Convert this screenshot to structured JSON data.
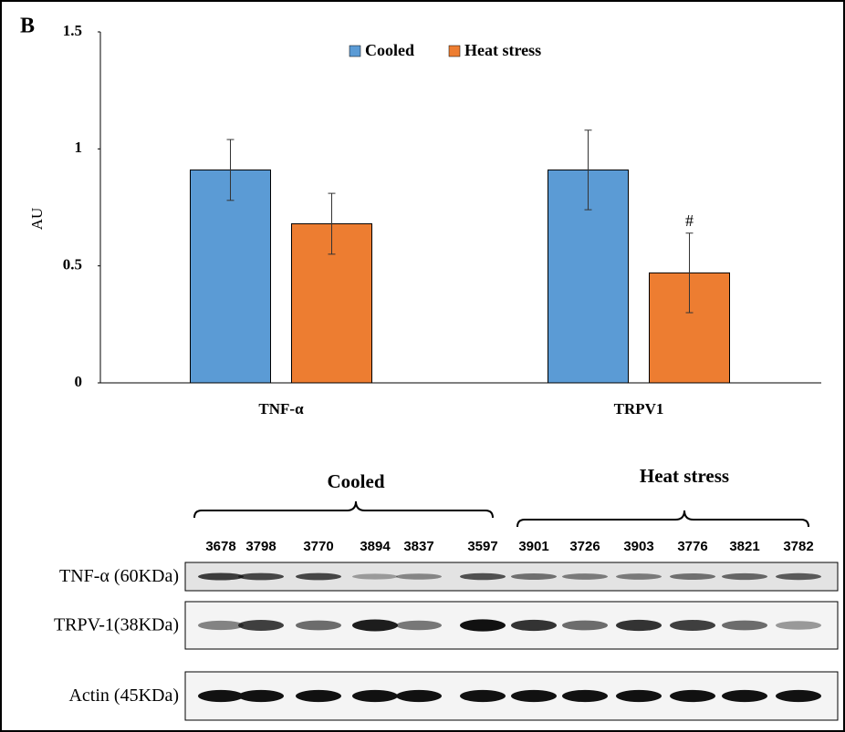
{
  "chart_data": {
    "type": "bar",
    "panel_label": "B",
    "y_label": "AU",
    "categories": [
      "TNF-α",
      "TRPV1"
    ],
    "series": [
      {
        "name": "Cooled",
        "color": "#5b9bd5",
        "values": [
          0.91,
          0.91
        ],
        "errors": [
          0.13,
          0.17
        ]
      },
      {
        "name": "Heat stress",
        "color": "#ed7d31",
        "values": [
          0.68,
          0.47
        ],
        "errors": [
          0.13,
          0.17
        ]
      }
    ],
    "annotations": [
      {
        "text": "#",
        "series": 1,
        "category": 1
      }
    ],
    "ylim": [
      0,
      1.5
    ],
    "yticks": [
      0,
      0.5,
      1,
      1.5
    ],
    "grid": false,
    "legend": "top"
  },
  "blot": {
    "groups": [
      "Cooled",
      "Heat stress"
    ],
    "samples": [
      "3678",
      "3798",
      "3770",
      "3894",
      "3837",
      "3597",
      "3901",
      "3726",
      "3903",
      "3776",
      "3821",
      "3782"
    ],
    "rows": [
      "TNF-α (60KDa)",
      "TRPV-1(38KDa)",
      "Actin (45KDa)"
    ]
  }
}
